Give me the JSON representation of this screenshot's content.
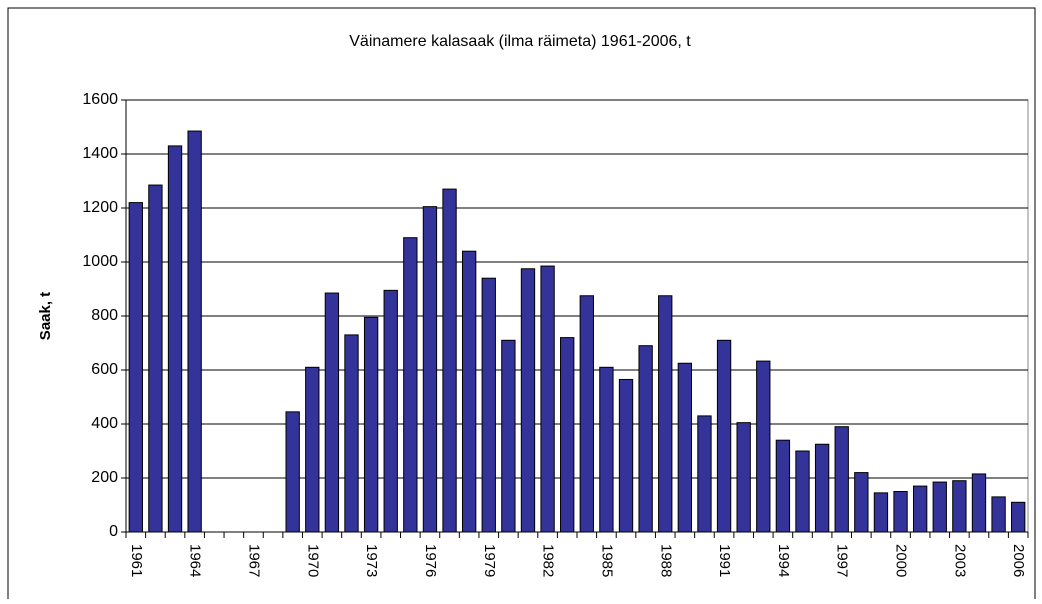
{
  "chart_data": {
    "type": "bar",
    "title": "Väinamere kalasaak (ilma räimeta) 1961-2006, t",
    "ylabel": "Saak, t",
    "categories": [
      "1961",
      null,
      null,
      "1964",
      null,
      null,
      "1967",
      null,
      null,
      "1970",
      null,
      null,
      "1973",
      null,
      null,
      "1976",
      null,
      null,
      "1979",
      null,
      null,
      "1982",
      null,
      null,
      "1985",
      null,
      null,
      "1988",
      null,
      null,
      "1991",
      null,
      null,
      "1994",
      null,
      null,
      "1997",
      null,
      null,
      "2000",
      null,
      null,
      "2003",
      null,
      null,
      "2006"
    ],
    "values": [
      1220,
      1285,
      1430,
      1485,
      null,
      null,
      null,
      null,
      445,
      610,
      885,
      730,
      795,
      895,
      1090,
      1205,
      1270,
      1040,
      940,
      710,
      975,
      985,
      720,
      875,
      610,
      565,
      690,
      875,
      625,
      430,
      710,
      405,
      633,
      340,
      300,
      325,
      390,
      220,
      145,
      150,
      170,
      185,
      190,
      215,
      130,
      110
    ],
    "color": "#333399",
    "ylim": [
      0,
      1600
    ],
    "yticks": [
      0,
      200,
      400,
      600,
      800,
      1000,
      1200,
      1400,
      1600
    ],
    "grid": true
  }
}
